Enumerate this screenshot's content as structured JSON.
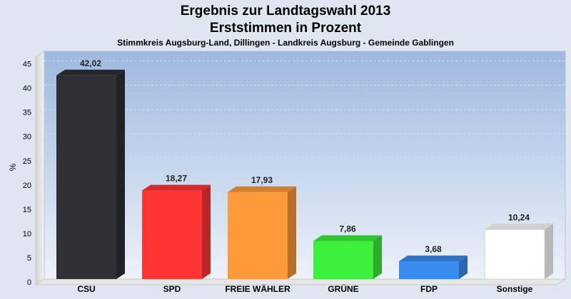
{
  "chart_data": {
    "type": "bar",
    "title": "Ergebnis zur Landtagswahl 2013\nErststimmen in Prozent",
    "subtitle": "Stimmkreis Augsburg-Land, Dillingen - Landkreis Augsburg - Gemeinde Gablingen",
    "ylabel": "%",
    "xlabel": "",
    "ylim": [
      0,
      47
    ],
    "yticks": [
      0,
      5,
      10,
      15,
      20,
      25,
      30,
      35,
      40,
      45
    ],
    "grid": true,
    "categories": [
      "CSU",
      "SPD",
      "FREIE WÄHLER",
      "GRÜNE",
      "FDP",
      "Sonstige"
    ],
    "values": [
      42.02,
      18.27,
      17.93,
      7.86,
      3.68,
      10.24
    ],
    "value_labels": [
      "42,02",
      "18,27",
      "17,93",
      "7,86",
      "3,68",
      "10,24"
    ],
    "colors": [
      "#2f2f35",
      "#ff3535",
      "#ff9a3a",
      "#3cf03c",
      "#3a8cf0",
      "#ffffff"
    ]
  }
}
